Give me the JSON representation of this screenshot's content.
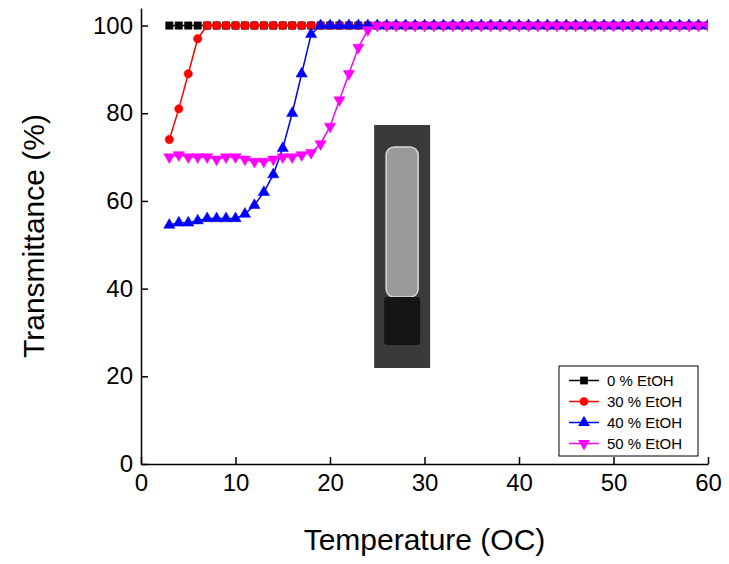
{
  "chart_data": {
    "type": "line",
    "x_label": "Temperature (OC)",
    "y_label": "Transmittance (%)",
    "xlim": [
      0,
      60
    ],
    "ylim": [
      0,
      104
    ],
    "xticks": [
      0,
      10,
      20,
      30,
      40,
      50,
      60
    ],
    "yticks": [
      0,
      20,
      40,
      60,
      80,
      100
    ],
    "legend": "lower right",
    "x": [
      3,
      4,
      5,
      6,
      7,
      8,
      9,
      10,
      11,
      12,
      13,
      14,
      15,
      16,
      17,
      18,
      19,
      20,
      21,
      22,
      23,
      24,
      25,
      26,
      27,
      28,
      29,
      30,
      31,
      32,
      33,
      34,
      35,
      36,
      37,
      38,
      39,
      40,
      41,
      42,
      43,
      44,
      45,
      46,
      47,
      48,
      49,
      50,
      51,
      52,
      53,
      54,
      55,
      56,
      57,
      58,
      59,
      60
    ],
    "series": [
      {
        "name": "0 % EtOH",
        "color": "#000000",
        "marker": "square",
        "values": [
          100,
          100,
          100,
          100,
          100,
          100,
          100,
          100,
          100,
          100,
          100,
          100,
          100,
          100,
          100,
          100,
          100,
          100,
          100,
          100,
          100,
          100,
          100,
          100,
          100,
          100,
          100,
          100,
          100,
          100,
          100,
          100,
          100,
          100,
          100,
          100,
          100,
          100,
          100,
          100,
          100,
          100,
          100,
          100,
          100,
          100,
          100,
          100,
          100,
          100,
          100,
          100,
          100,
          100,
          100,
          100,
          100,
          100
        ]
      },
      {
        "name": "30 % EtOH",
        "color": "#ff0000",
        "marker": "circle",
        "values": [
          74,
          81,
          89,
          97,
          100,
          100,
          100,
          100,
          100,
          100,
          100,
          100,
          100,
          100,
          100,
          100,
          100,
          100,
          100,
          100,
          100,
          100,
          100,
          100,
          100,
          100,
          100,
          100,
          100,
          100,
          100,
          100,
          100,
          100,
          100,
          100,
          100,
          100,
          100,
          100,
          100,
          100,
          100,
          100,
          100,
          100,
          100,
          100,
          100,
          100,
          100,
          100,
          100,
          100,
          100,
          100,
          100,
          100
        ]
      },
      {
        "name": "40 % EtOH",
        "color": "#0000ff",
        "marker": "triangle-up",
        "values": [
          54.5,
          55,
          55,
          55.5,
          56,
          56,
          56,
          56,
          57,
          59,
          62,
          66,
          72,
          80,
          89,
          98,
          100,
          100,
          100,
          100,
          100,
          100,
          100,
          100,
          100,
          100,
          100,
          100,
          100,
          100,
          100,
          100,
          100,
          100,
          100,
          100,
          100,
          100,
          100,
          100,
          100,
          100,
          100,
          100,
          100,
          100,
          100,
          100,
          100,
          100,
          100,
          100,
          100,
          100,
          100,
          100,
          100,
          100
        ]
      },
      {
        "name": "50 % EtOH",
        "color": "#ff00ff",
        "marker": "triangle-down",
        "values": [
          70,
          70.5,
          70,
          70,
          70,
          69.5,
          70,
          70,
          69.5,
          69,
          69,
          69.5,
          70,
          70,
          70.5,
          71,
          73,
          77,
          83,
          89,
          95,
          99,
          100,
          100,
          100,
          100,
          100,
          100,
          100,
          100,
          100,
          100,
          100,
          100,
          100,
          100,
          100,
          100,
          100,
          100,
          100,
          100,
          100,
          100,
          100,
          100,
          100,
          100,
          100,
          100,
          100,
          100,
          100,
          100,
          100,
          100,
          100,
          100
        ]
      }
    ]
  }
}
